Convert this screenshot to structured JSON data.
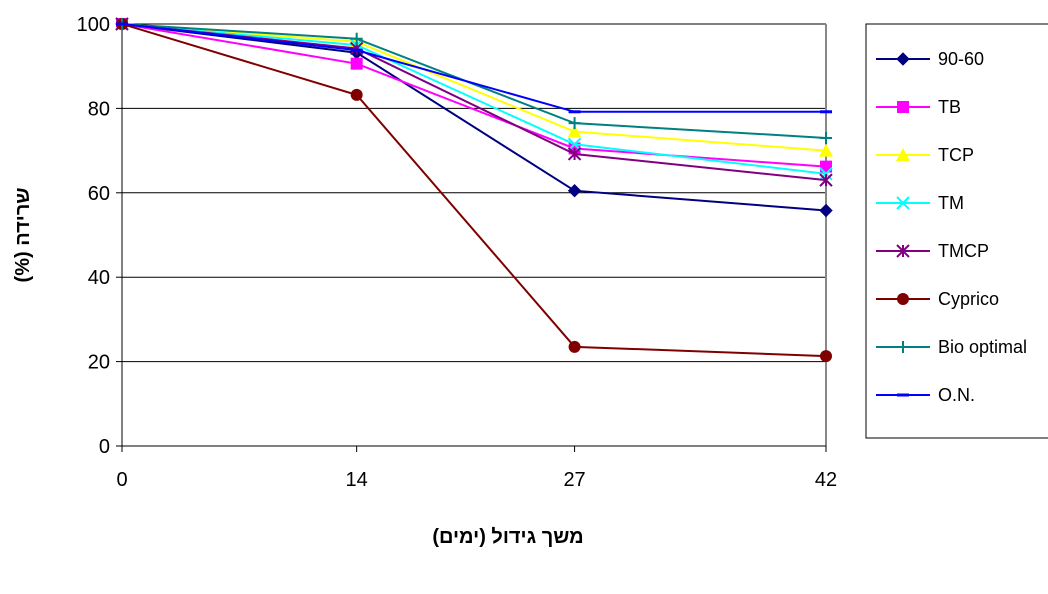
{
  "chart_data": {
    "type": "line",
    "xlabel": "משך גידול (ימים)",
    "ylabel": "שרידה (%)",
    "x": [
      0,
      14,
      27,
      42
    ],
    "x_tick_labels": [
      "0",
      "14",
      "27",
      "42"
    ],
    "ylim": [
      0,
      100
    ],
    "y_ticks": [
      0,
      20,
      40,
      60,
      80,
      100
    ],
    "grid": "horizontal",
    "legend_position": "right",
    "series": [
      {
        "name": "90-60",
        "color": "#000080",
        "marker": "diamond",
        "values": [
          100,
          93.2,
          60.5,
          55.8
        ]
      },
      {
        "name": "TB",
        "color": "#FF00FF",
        "marker": "square",
        "values": [
          100,
          90.6,
          70.5,
          66.2
        ]
      },
      {
        "name": "TCP",
        "color": "#FFFF00",
        "marker": "triangle",
        "values": [
          100,
          95.8,
          74.5,
          70.0
        ]
      },
      {
        "name": "TM",
        "color": "#00FFFF",
        "marker": "x",
        "values": [
          100,
          95.0,
          71.5,
          64.5
        ]
      },
      {
        "name": "TMCP",
        "color": "#800080",
        "marker": "asterisk",
        "values": [
          100,
          94.2,
          69.2,
          63.0
        ]
      },
      {
        "name": "Cyprico",
        "color": "#800000",
        "marker": "circle",
        "values": [
          100,
          83.2,
          23.5,
          21.3
        ]
      },
      {
        "name": "Bio optimal",
        "color": "#008080",
        "marker": "plus",
        "values": [
          100,
          96.5,
          76.5,
          73.0
        ]
      },
      {
        "name": "O.N.",
        "color": "#0000FF",
        "marker": "dash",
        "values": [
          100,
          93.8,
          79.2,
          79.2
        ]
      }
    ]
  }
}
